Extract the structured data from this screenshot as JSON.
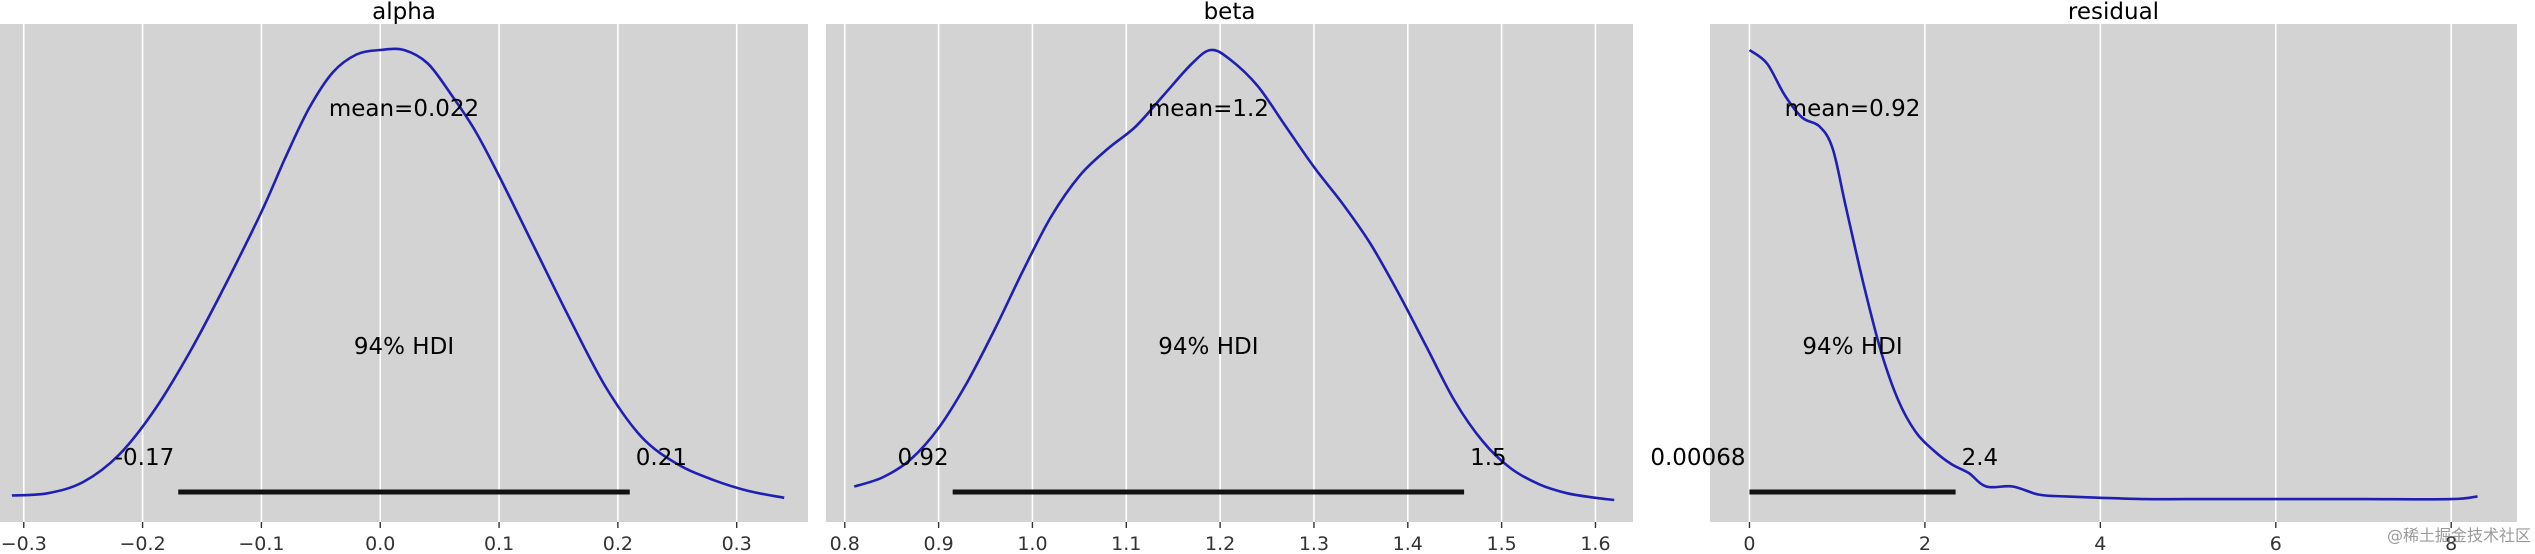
{
  "colors": {
    "panel_bg": "#d3d3d3",
    "grid": "#ffffff",
    "kde_line": "#1f1fb4",
    "hdi_bar": "#111111",
    "tick_text": "#333333"
  },
  "watermark": "@稀土掘金技术社区",
  "chart_data": [
    {
      "type": "line",
      "title": "alpha",
      "xlabel": "",
      "ylabel": "",
      "grid": true,
      "xlim": [
        -0.32,
        0.36
      ],
      "xticks": [
        -0.3,
        -0.2,
        -0.1,
        0.0,
        0.1,
        0.2,
        0.3
      ],
      "xtick_labels": [
        "−0.3",
        "−0.2",
        "−0.1",
        "0.0",
        "0.1",
        "0.2",
        "0.3"
      ],
      "x": [
        -0.31,
        -0.28,
        -0.25,
        -0.22,
        -0.19,
        -0.16,
        -0.13,
        -0.1,
        -0.08,
        -0.06,
        -0.04,
        -0.02,
        0.0,
        0.02,
        0.04,
        0.06,
        0.08,
        0.1,
        0.13,
        0.16,
        0.19,
        0.22,
        0.25,
        0.28,
        0.31,
        0.34
      ],
      "density": [
        0.01,
        0.015,
        0.04,
        0.1,
        0.2,
        0.33,
        0.48,
        0.64,
        0.76,
        0.87,
        0.95,
        0.99,
        1.0,
        1.0,
        0.97,
        0.9,
        0.82,
        0.72,
        0.56,
        0.4,
        0.25,
        0.14,
        0.08,
        0.045,
        0.02,
        0.005
      ],
      "mean_label": "mean=0.022",
      "hdi_label": "94% HDI",
      "hdi_low": -0.17,
      "hdi_high": 0.21,
      "hdi_low_label": "-0.17",
      "hdi_high_label": "0.21"
    },
    {
      "type": "line",
      "title": "beta",
      "xlabel": "",
      "ylabel": "",
      "grid": true,
      "xlim": [
        0.78,
        1.64
      ],
      "xticks": [
        0.8,
        0.9,
        1.0,
        1.1,
        1.2,
        1.3,
        1.4,
        1.5,
        1.6
      ],
      "xtick_labels": [
        "0.8",
        "0.9",
        "1.0",
        "1.1",
        "1.2",
        "1.3",
        "1.4",
        "1.5",
        "1.6"
      ],
      "x": [
        0.81,
        0.84,
        0.87,
        0.9,
        0.93,
        0.96,
        0.99,
        1.02,
        1.05,
        1.08,
        1.11,
        1.14,
        1.17,
        1.19,
        1.21,
        1.24,
        1.27,
        1.3,
        1.33,
        1.36,
        1.39,
        1.42,
        1.45,
        1.48,
        1.51,
        1.54,
        1.57,
        1.6,
        1.62
      ],
      "density": [
        0.03,
        0.05,
        0.09,
        0.16,
        0.26,
        0.38,
        0.51,
        0.63,
        0.72,
        0.78,
        0.83,
        0.9,
        0.97,
        1.0,
        0.98,
        0.92,
        0.83,
        0.74,
        0.66,
        0.57,
        0.46,
        0.34,
        0.22,
        0.13,
        0.07,
        0.035,
        0.015,
        0.005,
        0.0
      ],
      "mean_label": "mean=1.2",
      "hdi_label": "94% HDI",
      "hdi_low": 0.915,
      "hdi_high": 1.46,
      "hdi_low_label": "0.92",
      "hdi_high_label": "1.5"
    },
    {
      "type": "line",
      "title": "residual",
      "xlabel": "",
      "ylabel": "",
      "grid": true,
      "xlim": [
        -0.45,
        8.75
      ],
      "xticks": [
        0,
        2,
        4,
        6,
        8
      ],
      "xtick_labels": [
        "0",
        "2",
        "4",
        "6",
        "8"
      ],
      "x": [
        0.0,
        0.2,
        0.4,
        0.6,
        0.8,
        0.95,
        1.1,
        1.3,
        1.5,
        1.7,
        1.9,
        2.1,
        2.3,
        2.5,
        2.7,
        3.0,
        3.3,
        3.6,
        4.0,
        4.5,
        5.0,
        6.0,
        7.0,
        8.0,
        8.3
      ],
      "density": [
        1.0,
        0.97,
        0.9,
        0.85,
        0.83,
        0.78,
        0.65,
        0.48,
        0.33,
        0.22,
        0.15,
        0.11,
        0.08,
        0.06,
        0.03,
        0.03,
        0.012,
        0.008,
        0.005,
        0.002,
        0.002,
        0.002,
        0.002,
        0.002,
        0.008
      ],
      "mean_label": "mean=0.92",
      "hdi_label": "94% HDI",
      "hdi_low": 0.0,
      "hdi_high": 2.35,
      "hdi_low_label": "0.00068",
      "hdi_high_label": "2.4"
    }
  ]
}
